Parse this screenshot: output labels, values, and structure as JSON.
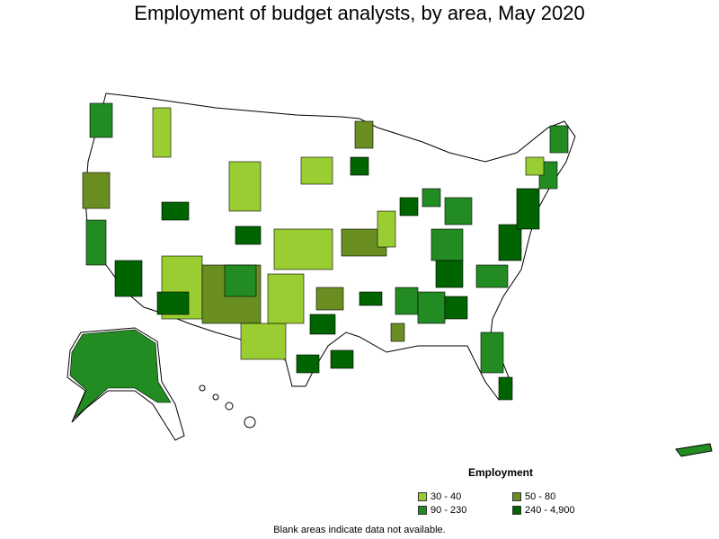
{
  "title": "Employment of budget analysts, by area, May 2020",
  "legend": {
    "title": "Employment",
    "items": [
      {
        "label": "30 - 40",
        "color": "#9acd32"
      },
      {
        "label": "50 - 80",
        "color": "#6b8e23"
      },
      {
        "label": "90 - 230",
        "color": "#228b22"
      },
      {
        "label": "240 - 4,900",
        "color": "#006400"
      }
    ]
  },
  "note": "Blank areas indicate data not available."
}
